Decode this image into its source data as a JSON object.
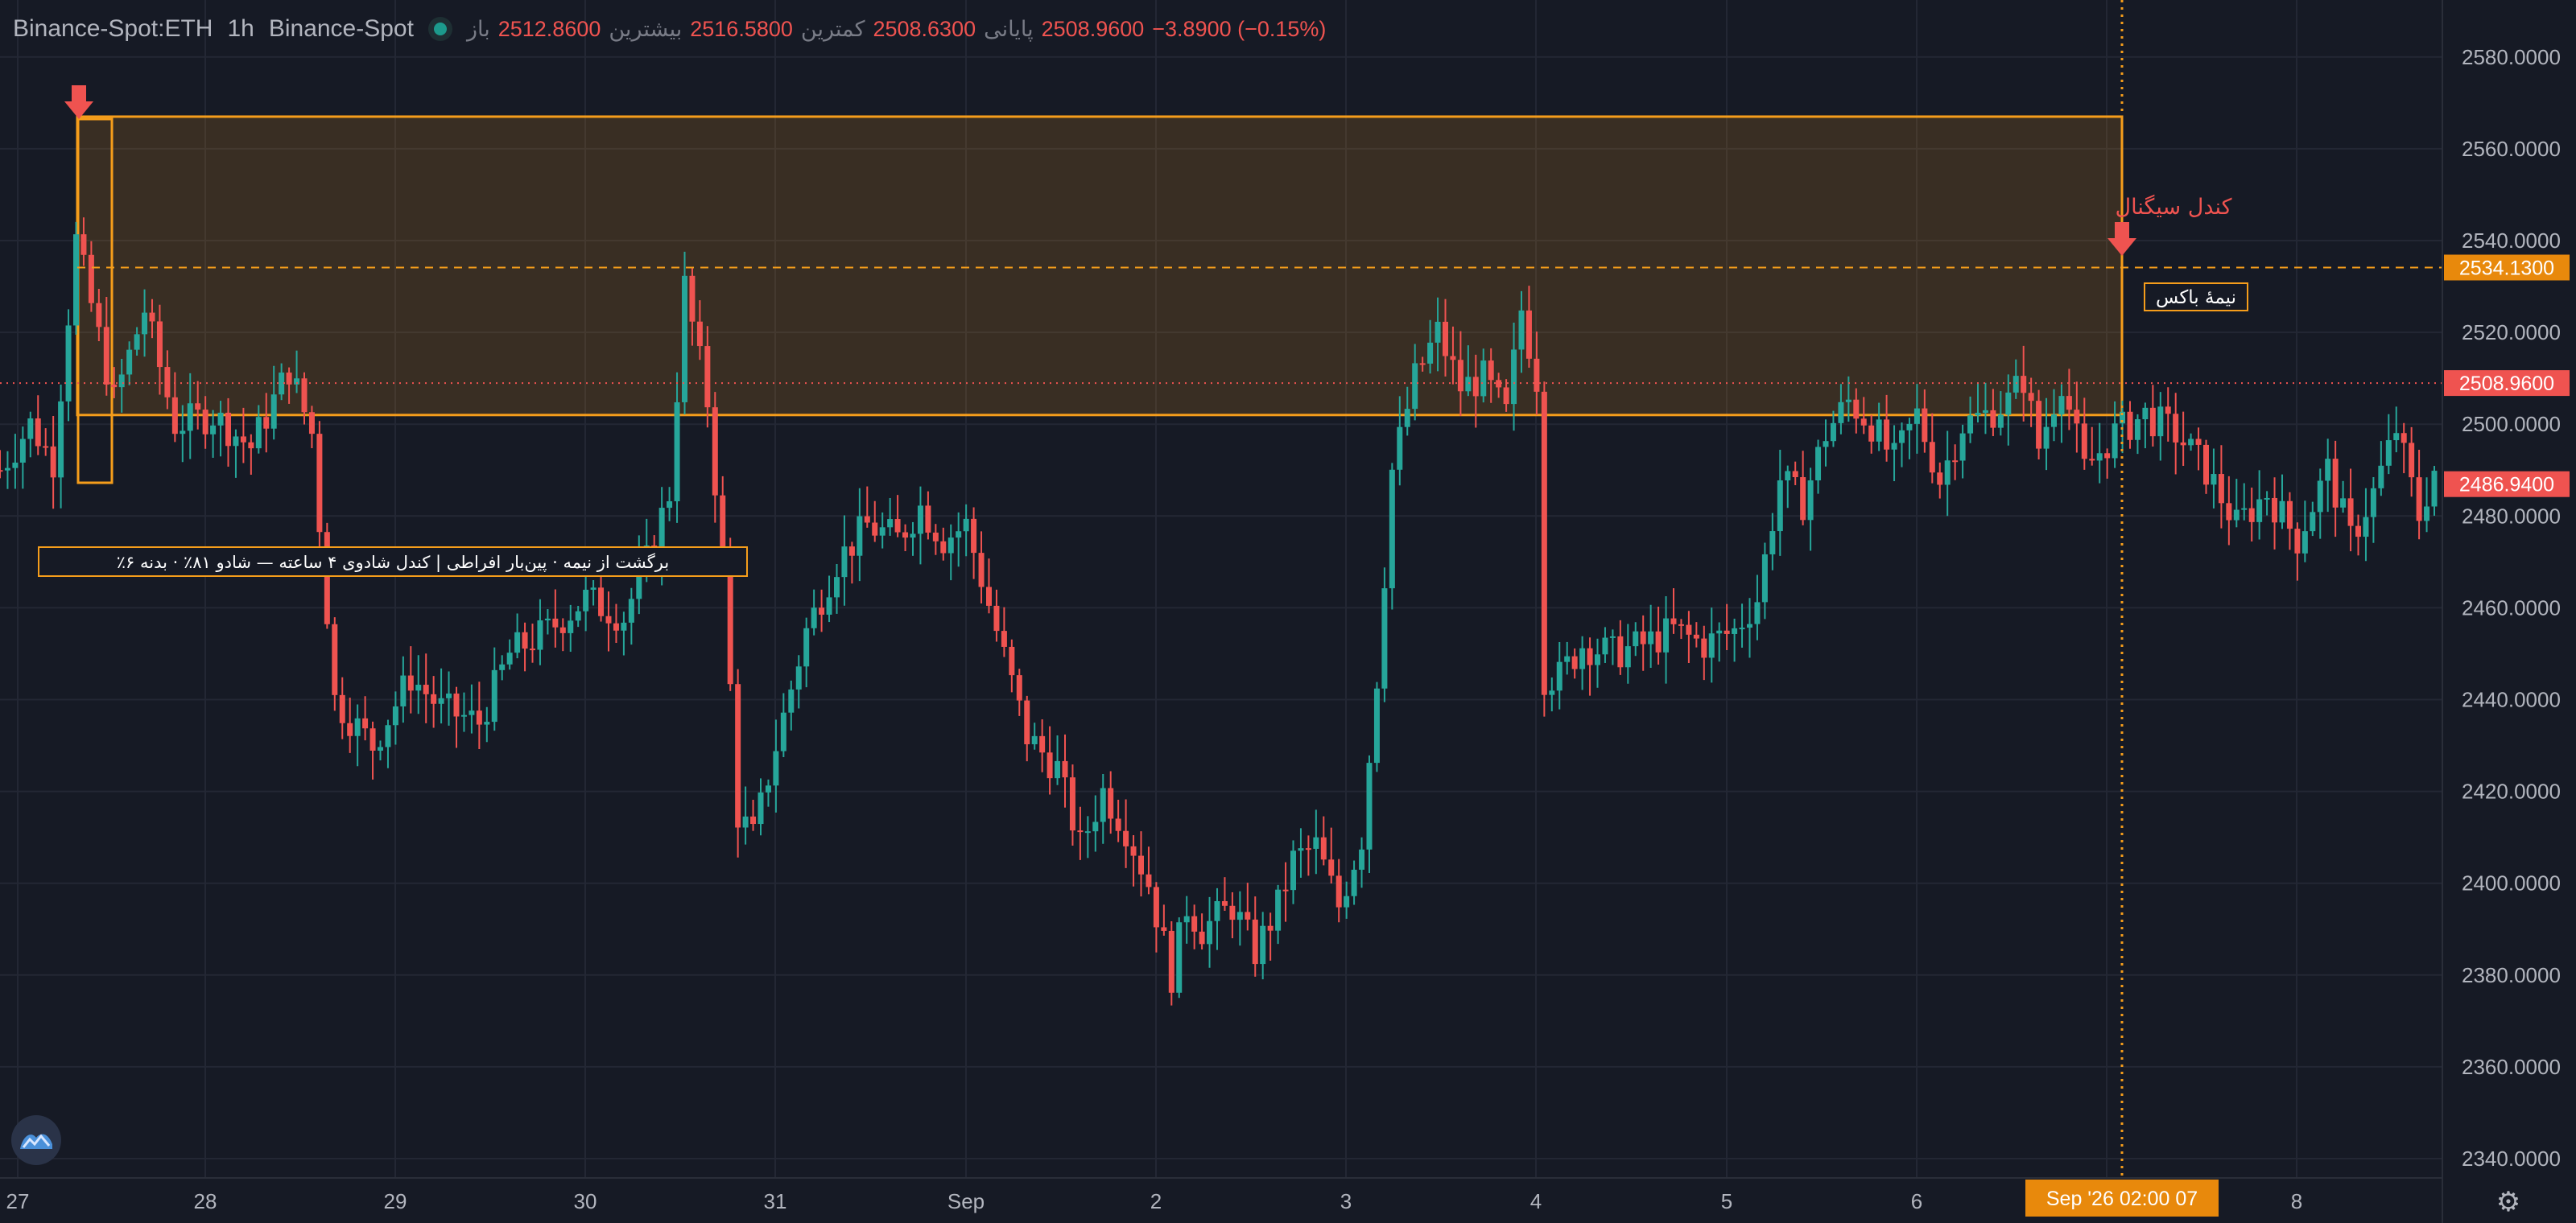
{
  "header": {
    "symbol": "Binance-Spot:ETH",
    "interval": "1h",
    "exchange": "Binance-Spot",
    "open_label": "باز",
    "open": "2512.8600",
    "high_label": "بیشترین",
    "high": "2516.5800",
    "low_label": "کمترین",
    "low": "2508.6300",
    "close_label": "پایانی",
    "close": "2508.9600",
    "change": "−3.8900 (−0.15%)"
  },
  "colors": {
    "background": "#161a25",
    "grid": "#232734",
    "up": "#26a69a",
    "down": "#ef5350",
    "box": "#f59d1b",
    "box_fill": "rgba(245,157,27,0.16)",
    "text": "#b2b5be"
  },
  "annotations": {
    "signal_label": "کندل سیگنال",
    "box_label": "نیمهٔ باکس",
    "note": "٪برگشت از نیمه · پین‌بار افراطی | کندل شادوی ۴ ساعته — شادو ۸۱٪ · بدنه ۶"
  },
  "price_tags": {
    "midline": "2534.1300",
    "last": "2508.9600",
    "marker": "2486.9400"
  },
  "crosshair": {
    "label": "Sep '26   02:00 07"
  },
  "chart_data": {
    "type": "candlestick",
    "timeframe": "1h",
    "ylim": [
      2335,
      2593
    ],
    "y_ticks": [
      "2580.0000",
      "2560.0000",
      "2540.0000",
      "2520.0000",
      "2500.0000",
      "2480.0000",
      "2460.0000",
      "2440.0000",
      "2420.0000",
      "2400.0000",
      "2380.0000",
      "2360.0000",
      "2340.0000"
    ],
    "x_ticks": [
      "27",
      "28",
      "29",
      "30",
      "31",
      "Sep",
      "2",
      "3",
      "4",
      "5",
      "6",
      "7",
      "8"
    ],
    "box": {
      "top": 2567,
      "bottom": 2502,
      "mid": 2534.13
    },
    "last_price": 2508.96,
    "marker_price": 2486.94,
    "anchors": [
      [
        0,
        2490
      ],
      [
        4,
        2500
      ],
      [
        7,
        2492
      ],
      [
        10,
        2540
      ],
      [
        15,
        2505
      ],
      [
        19,
        2525
      ],
      [
        23,
        2500
      ],
      [
        28,
        2502
      ],
      [
        33,
        2495
      ],
      [
        38,
        2512
      ],
      [
        41,
        2498
      ],
      [
        44,
        2440
      ],
      [
        49,
        2430
      ],
      [
        54,
        2445
      ],
      [
        58,
        2438
      ],
      [
        63,
        2435
      ],
      [
        67,
        2450
      ],
      [
        72,
        2455
      ],
      [
        77,
        2462
      ],
      [
        82,
        2458
      ],
      [
        85,
        2470
      ],
      [
        88,
        2485
      ],
      [
        90,
        2530
      ],
      [
        93,
        2505
      ],
      [
        95,
        2470
      ],
      [
        97,
        2415
      ],
      [
        99,
        2410
      ],
      [
        102,
        2430
      ],
      [
        106,
        2455
      ],
      [
        110,
        2470
      ],
      [
        114,
        2478
      ],
      [
        118,
        2475
      ],
      [
        121,
        2482
      ],
      [
        124,
        2475
      ],
      [
        127,
        2478
      ],
      [
        131,
        2455
      ],
      [
        135,
        2432
      ],
      [
        139,
        2425
      ],
      [
        142,
        2408
      ],
      [
        145,
        2420
      ],
      [
        148,
        2412
      ],
      [
        151,
        2400
      ],
      [
        154,
        2380
      ],
      [
        156,
        2395
      ],
      [
        158,
        2390
      ],
      [
        162,
        2395
      ],
      [
        165,
        2385
      ],
      [
        168,
        2395
      ],
      [
        170,
        2405
      ],
      [
        173,
        2408
      ],
      [
        176,
        2395
      ],
      [
        179,
        2410
      ],
      [
        181,
        2445
      ],
      [
        183,
        2490
      ],
      [
        186,
        2510
      ],
      [
        189,
        2520
      ],
      [
        192,
        2508
      ],
      [
        195,
        2510
      ],
      [
        198,
        2502
      ],
      [
        200,
        2525
      ],
      [
        202,
        2510
      ],
      [
        203,
        2445
      ],
      [
        205,
        2445
      ],
      [
        208,
        2452
      ],
      [
        212,
        2450
      ],
      [
        216,
        2452
      ],
      [
        220,
        2455
      ],
      [
        224,
        2452
      ],
      [
        228,
        2455
      ],
      [
        231,
        2462
      ],
      [
        234,
        2488
      ],
      [
        237,
        2483
      ],
      [
        240,
        2498
      ],
      [
        243,
        2505
      ],
      [
        246,
        2500
      ],
      [
        249,
        2492
      ],
      [
        252,
        2502
      ],
      [
        255,
        2488
      ],
      [
        258,
        2500
      ],
      [
        261,
        2502
      ],
      [
        264,
        2505
      ],
      [
        266,
        2510
      ],
      [
        268,
        2495
      ],
      [
        271,
        2510
      ],
      [
        274,
        2490
      ],
      [
        278,
        2498
      ],
      [
        282,
        2502
      ],
      [
        286,
        2498
      ],
      [
        290,
        2490
      ],
      [
        294,
        2478
      ],
      [
        298,
        2485
      ],
      [
        302,
        2475
      ],
      [
        306,
        2490
      ],
      [
        309,
        2475
      ],
      [
        312,
        2485
      ],
      [
        315,
        2499
      ],
      [
        318,
        2480
      ],
      [
        320,
        2490
      ]
    ]
  }
}
